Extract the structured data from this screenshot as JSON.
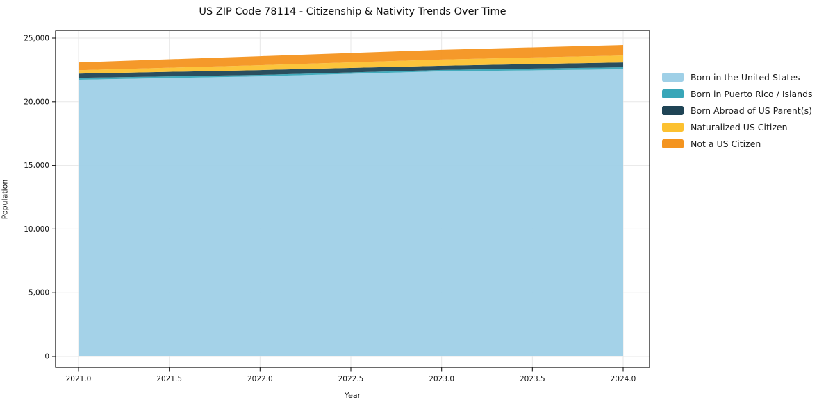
{
  "chart_data": {
    "type": "area",
    "stacked": true,
    "title": "US ZIP Code 78114 - Citizenship & Nativity Trends Over Time",
    "xlabel": "Year",
    "ylabel": "Population",
    "x": [
      2021,
      2022,
      2023,
      2024
    ],
    "series": [
      {
        "name": "Born in the United States",
        "color": "#9fd0e7",
        "values": [
          21730,
          22000,
          22390,
          22550
        ]
      },
      {
        "name": "Born in Puerto Rico / Islands",
        "color": "#38a6b8",
        "values": [
          150,
          110,
          110,
          160
        ]
      },
      {
        "name": "Born Abroad of US Parent(s)",
        "color": "#1f4455",
        "values": [
          330,
          380,
          330,
          380
        ]
      },
      {
        "name": "Naturalized US Citizen",
        "color": "#fcc130",
        "values": [
          270,
          380,
          490,
          545
        ]
      },
      {
        "name": "Not a US Citizen",
        "color": "#f4941f",
        "values": [
          610,
          710,
          760,
          820
        ]
      }
    ],
    "xticks": [
      2021.0,
      2021.5,
      2022.0,
      2022.5,
      2023.0,
      2023.5,
      2024.0
    ],
    "yticks": [
      0,
      5000,
      10000,
      15000,
      20000,
      25000
    ],
    "xlim": [
      2020.87,
      2024.15
    ],
    "ylim": [
      0,
      25000
    ],
    "grid": true,
    "legend_position": "right",
    "colors": {
      "spine": "#1a1a1a",
      "grid": "#e7e7e7",
      "background": "#ffffff"
    }
  }
}
